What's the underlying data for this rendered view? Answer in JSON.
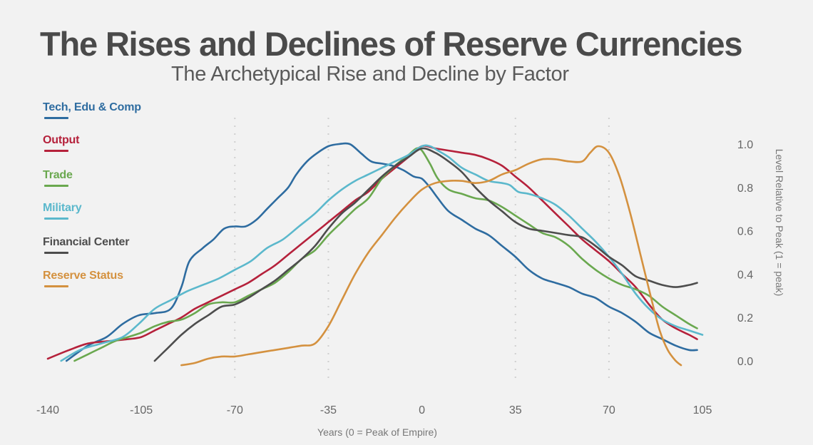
{
  "header": {
    "title": "The Rises and Declines of Reserve Currencies",
    "subtitle": "The Archetypical Rise and Decline by Factor"
  },
  "chart_data": {
    "type": "line",
    "title": "The Rises and Declines of Reserve Currencies",
    "subtitle": "The Archetypical Rise and Decline by Factor",
    "xlabel": "Years (0 = Peak of Empire)",
    "ylabel": "Level Relative to Peak (1 = peak)",
    "xlim": [
      -140,
      105
    ],
    "ylim": [
      0,
      1.0
    ],
    "x_ticks": [
      -140,
      -105,
      -70,
      -35,
      0,
      35,
      70,
      105
    ],
    "x_tick_labels": [
      "-140",
      "-105",
      "-70",
      "-35",
      "0",
      "35",
      "70",
      "105"
    ],
    "y_ticks": [
      0.0,
      0.2,
      0.4,
      0.6,
      0.8,
      1.0
    ],
    "y_tick_labels": [
      "0.0",
      "0.2",
      "0.4",
      "0.6",
      "0.8",
      "1.0"
    ],
    "y_axis_side": "right",
    "vertical_gridlines_dotted": [
      -70,
      -35,
      35,
      70
    ],
    "grid": false,
    "legend_position": "left",
    "series": [
      {
        "name": "Tech, Edu & Comp",
        "color": "#2e6ca0",
        "points": [
          [
            -133,
            0.0
          ],
          [
            -125,
            0.07
          ],
          [
            -118,
            0.11
          ],
          [
            -112,
            0.17
          ],
          [
            -106,
            0.21
          ],
          [
            -100,
            0.22
          ],
          [
            -94,
            0.24
          ],
          [
            -90,
            0.34
          ],
          [
            -87,
            0.46
          ],
          [
            -82,
            0.52
          ],
          [
            -78,
            0.56
          ],
          [
            -74,
            0.61
          ],
          [
            -70,
            0.62
          ],
          [
            -66,
            0.62
          ],
          [
            -62,
            0.65
          ],
          [
            -58,
            0.7
          ],
          [
            -54,
            0.75
          ],
          [
            -50,
            0.8
          ],
          [
            -47,
            0.86
          ],
          [
            -43,
            0.92
          ],
          [
            -39,
            0.96
          ],
          [
            -35,
            0.99
          ],
          [
            -31,
            1.0
          ],
          [
            -27,
            1.0
          ],
          [
            -23,
            0.96
          ],
          [
            -19,
            0.92
          ],
          [
            -15,
            0.91
          ],
          [
            -11,
            0.9
          ],
          [
            -7,
            0.88
          ],
          [
            -3,
            0.85
          ],
          [
            0,
            0.84
          ],
          [
            3,
            0.8
          ],
          [
            6,
            0.75
          ],
          [
            10,
            0.69
          ],
          [
            15,
            0.65
          ],
          [
            20,
            0.61
          ],
          [
            25,
            0.58
          ],
          [
            30,
            0.53
          ],
          [
            35,
            0.48
          ],
          [
            40,
            0.42
          ],
          [
            45,
            0.38
          ],
          [
            50,
            0.36
          ],
          [
            55,
            0.34
          ],
          [
            60,
            0.31
          ],
          [
            65,
            0.29
          ],
          [
            70,
            0.25
          ],
          [
            75,
            0.22
          ],
          [
            80,
            0.18
          ],
          [
            85,
            0.13
          ],
          [
            90,
            0.1
          ],
          [
            95,
            0.07
          ],
          [
            100,
            0.05
          ],
          [
            103,
            0.05
          ]
        ]
      },
      {
        "name": "Output",
        "color": "#b5213b",
        "points": [
          [
            -140,
            0.01
          ],
          [
            -132,
            0.05
          ],
          [
            -125,
            0.08
          ],
          [
            -118,
            0.09
          ],
          [
            -110,
            0.1
          ],
          [
            -105,
            0.11
          ],
          [
            -100,
            0.14
          ],
          [
            -95,
            0.17
          ],
          [
            -90,
            0.2
          ],
          [
            -85,
            0.24
          ],
          [
            -80,
            0.27
          ],
          [
            -75,
            0.3
          ],
          [
            -70,
            0.33
          ],
          [
            -65,
            0.36
          ],
          [
            -60,
            0.4
          ],
          [
            -55,
            0.44
          ],
          [
            -50,
            0.49
          ],
          [
            -45,
            0.54
          ],
          [
            -40,
            0.59
          ],
          [
            -35,
            0.64
          ],
          [
            -30,
            0.69
          ],
          [
            -25,
            0.74
          ],
          [
            -20,
            0.78
          ],
          [
            -15,
            0.84
          ],
          [
            -10,
            0.89
          ],
          [
            -5,
            0.94
          ],
          [
            0,
            0.99
          ],
          [
            5,
            0.98
          ],
          [
            10,
            0.97
          ],
          [
            15,
            0.96
          ],
          [
            20,
            0.95
          ],
          [
            25,
            0.93
          ],
          [
            30,
            0.9
          ],
          [
            35,
            0.85
          ],
          [
            40,
            0.8
          ],
          [
            45,
            0.74
          ],
          [
            50,
            0.68
          ],
          [
            55,
            0.62
          ],
          [
            60,
            0.56
          ],
          [
            65,
            0.51
          ],
          [
            70,
            0.46
          ],
          [
            75,
            0.4
          ],
          [
            80,
            0.34
          ],
          [
            85,
            0.26
          ],
          [
            90,
            0.19
          ],
          [
            95,
            0.15
          ],
          [
            100,
            0.12
          ],
          [
            103,
            0.1
          ]
        ]
      },
      {
        "name": "Trade",
        "color": "#6aa84f",
        "points": [
          [
            -130,
            0.0
          ],
          [
            -125,
            0.03
          ],
          [
            -120,
            0.06
          ],
          [
            -115,
            0.09
          ],
          [
            -110,
            0.11
          ],
          [
            -105,
            0.13
          ],
          [
            -100,
            0.16
          ],
          [
            -95,
            0.18
          ],
          [
            -90,
            0.19
          ],
          [
            -85,
            0.22
          ],
          [
            -80,
            0.26
          ],
          [
            -75,
            0.27
          ],
          [
            -70,
            0.27
          ],
          [
            -65,
            0.3
          ],
          [
            -60,
            0.33
          ],
          [
            -55,
            0.36
          ],
          [
            -50,
            0.41
          ],
          [
            -45,
            0.47
          ],
          [
            -40,
            0.51
          ],
          [
            -35,
            0.58
          ],
          [
            -30,
            0.64
          ],
          [
            -25,
            0.7
          ],
          [
            -20,
            0.75
          ],
          [
            -15,
            0.84
          ],
          [
            -10,
            0.9
          ],
          [
            -5,
            0.95
          ],
          [
            -2,
            0.98
          ],
          [
            0,
            0.97
          ],
          [
            3,
            0.91
          ],
          [
            6,
            0.84
          ],
          [
            10,
            0.79
          ],
          [
            15,
            0.77
          ],
          [
            20,
            0.75
          ],
          [
            25,
            0.74
          ],
          [
            30,
            0.71
          ],
          [
            35,
            0.67
          ],
          [
            40,
            0.63
          ],
          [
            45,
            0.59
          ],
          [
            50,
            0.57
          ],
          [
            55,
            0.53
          ],
          [
            60,
            0.47
          ],
          [
            65,
            0.42
          ],
          [
            70,
            0.38
          ],
          [
            75,
            0.35
          ],
          [
            80,
            0.33
          ],
          [
            85,
            0.3
          ],
          [
            90,
            0.25
          ],
          [
            95,
            0.21
          ],
          [
            100,
            0.17
          ],
          [
            103,
            0.15
          ]
        ]
      },
      {
        "name": "Military",
        "color": "#5bb8cc",
        "points": [
          [
            -135,
            0.0
          ],
          [
            -128,
            0.05
          ],
          [
            -120,
            0.08
          ],
          [
            -112,
            0.11
          ],
          [
            -106,
            0.17
          ],
          [
            -100,
            0.24
          ],
          [
            -94,
            0.28
          ],
          [
            -88,
            0.32
          ],
          [
            -82,
            0.35
          ],
          [
            -76,
            0.38
          ],
          [
            -70,
            0.42
          ],
          [
            -64,
            0.46
          ],
          [
            -58,
            0.52
          ],
          [
            -52,
            0.56
          ],
          [
            -46,
            0.62
          ],
          [
            -40,
            0.68
          ],
          [
            -35,
            0.74
          ],
          [
            -30,
            0.79
          ],
          [
            -25,
            0.83
          ],
          [
            -20,
            0.86
          ],
          [
            -15,
            0.89
          ],
          [
            -10,
            0.92
          ],
          [
            -5,
            0.95
          ],
          [
            0,
            0.99
          ],
          [
            3,
            0.99
          ],
          [
            6,
            0.97
          ],
          [
            10,
            0.94
          ],
          [
            15,
            0.89
          ],
          [
            20,
            0.86
          ],
          [
            25,
            0.83
          ],
          [
            30,
            0.82
          ],
          [
            33,
            0.81
          ],
          [
            36,
            0.78
          ],
          [
            40,
            0.77
          ],
          [
            45,
            0.75
          ],
          [
            50,
            0.72
          ],
          [
            55,
            0.67
          ],
          [
            60,
            0.61
          ],
          [
            65,
            0.55
          ],
          [
            70,
            0.48
          ],
          [
            75,
            0.4
          ],
          [
            80,
            0.31
          ],
          [
            85,
            0.24
          ],
          [
            90,
            0.19
          ],
          [
            95,
            0.16
          ],
          [
            100,
            0.14
          ],
          [
            105,
            0.12
          ]
        ]
      },
      {
        "name": "Financial Center",
        "color": "#4d4d4d",
        "points": [
          [
            -100,
            0.0
          ],
          [
            -95,
            0.06
          ],
          [
            -90,
            0.12
          ],
          [
            -85,
            0.17
          ],
          [
            -80,
            0.21
          ],
          [
            -75,
            0.25
          ],
          [
            -70,
            0.26
          ],
          [
            -65,
            0.29
          ],
          [
            -60,
            0.33
          ],
          [
            -55,
            0.37
          ],
          [
            -50,
            0.42
          ],
          [
            -45,
            0.47
          ],
          [
            -40,
            0.53
          ],
          [
            -35,
            0.61
          ],
          [
            -30,
            0.68
          ],
          [
            -25,
            0.73
          ],
          [
            -20,
            0.79
          ],
          [
            -15,
            0.85
          ],
          [
            -10,
            0.9
          ],
          [
            -5,
            0.94
          ],
          [
            0,
            0.98
          ],
          [
            5,
            0.96
          ],
          [
            10,
            0.92
          ],
          [
            15,
            0.87
          ],
          [
            20,
            0.8
          ],
          [
            25,
            0.74
          ],
          [
            30,
            0.69
          ],
          [
            35,
            0.64
          ],
          [
            40,
            0.61
          ],
          [
            45,
            0.6
          ],
          [
            50,
            0.59
          ],
          [
            55,
            0.58
          ],
          [
            60,
            0.57
          ],
          [
            65,
            0.53
          ],
          [
            70,
            0.48
          ],
          [
            75,
            0.44
          ],
          [
            80,
            0.39
          ],
          [
            85,
            0.37
          ],
          [
            90,
            0.35
          ],
          [
            95,
            0.34
          ],
          [
            100,
            0.35
          ],
          [
            103,
            0.36
          ]
        ]
      },
      {
        "name": "Reserve Status",
        "color": "#d4913f",
        "points": [
          [
            -90,
            -0.02
          ],
          [
            -85,
            -0.01
          ],
          [
            -80,
            0.01
          ],
          [
            -75,
            0.02
          ],
          [
            -70,
            0.02
          ],
          [
            -65,
            0.03
          ],
          [
            -60,
            0.04
          ],
          [
            -55,
            0.05
          ],
          [
            -50,
            0.06
          ],
          [
            -45,
            0.07
          ],
          [
            -40,
            0.08
          ],
          [
            -35,
            0.16
          ],
          [
            -30,
            0.28
          ],
          [
            -25,
            0.4
          ],
          [
            -20,
            0.5
          ],
          [
            -15,
            0.58
          ],
          [
            -10,
            0.66
          ],
          [
            -5,
            0.73
          ],
          [
            0,
            0.79
          ],
          [
            5,
            0.82
          ],
          [
            10,
            0.83
          ],
          [
            15,
            0.83
          ],
          [
            20,
            0.82
          ],
          [
            25,
            0.83
          ],
          [
            30,
            0.86
          ],
          [
            35,
            0.88
          ],
          [
            40,
            0.91
          ],
          [
            45,
            0.93
          ],
          [
            50,
            0.93
          ],
          [
            55,
            0.92
          ],
          [
            60,
            0.92
          ],
          [
            63,
            0.96
          ],
          [
            66,
            0.99
          ],
          [
            70,
            0.96
          ],
          [
            74,
            0.85
          ],
          [
            78,
            0.68
          ],
          [
            82,
            0.48
          ],
          [
            86,
            0.28
          ],
          [
            89,
            0.14
          ],
          [
            92,
            0.05
          ],
          [
            95,
            0.0
          ],
          [
            97,
            -0.02
          ]
        ]
      }
    ]
  }
}
